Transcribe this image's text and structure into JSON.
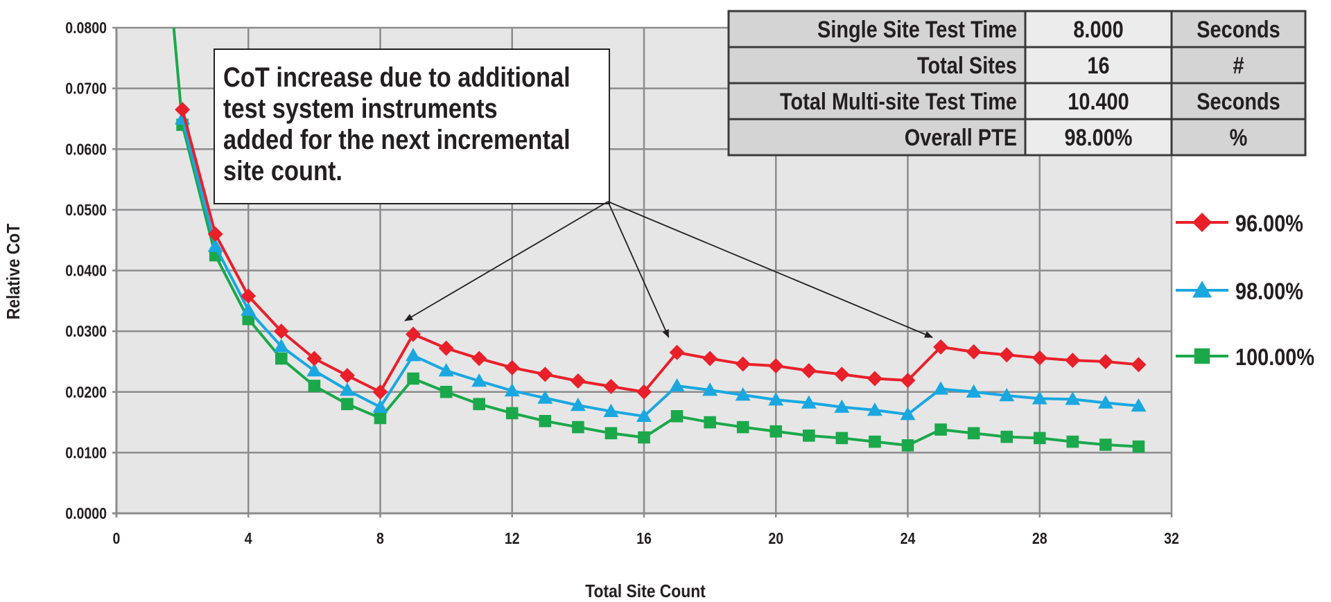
{
  "chart_data": {
    "type": "line",
    "title": "",
    "xlabel": "Total Site Count",
    "ylabel": "Relative CoT",
    "xlim": [
      0,
      32
    ],
    "ylim": [
      0,
      0.08
    ],
    "x_ticks": [
      "0",
      "4",
      "8",
      "12",
      "16",
      "20",
      "24",
      "28",
      "32"
    ],
    "y_ticks": [
      "0.0000",
      "0.0100",
      "0.0200",
      "0.0300",
      "0.0400",
      "0.0500",
      "0.0600",
      "0.0700",
      "0.0800"
    ],
    "grid": true,
    "legend_position": "right",
    "series": [
      {
        "name": "96.00%",
        "color": "#e8202a",
        "marker": "diamond",
        "x": [
          2,
          3,
          4,
          5,
          6,
          7,
          8,
          9,
          10,
          11,
          12,
          13,
          14,
          15,
          16,
          17,
          18,
          19,
          20,
          21,
          22,
          23,
          24,
          25,
          26,
          27,
          28,
          29,
          30,
          31
        ],
        "values": [
          0.0665,
          0.046,
          0.0358,
          0.03,
          0.0255,
          0.0227,
          0.02,
          0.0295,
          0.0272,
          0.0255,
          0.024,
          0.0229,
          0.0218,
          0.0209,
          0.02,
          0.0265,
          0.0255,
          0.0246,
          0.0243,
          0.0235,
          0.0229,
          0.0222,
          0.0219,
          0.0274,
          0.0266,
          0.0261,
          0.0256,
          0.0252,
          0.025,
          0.0245
        ]
      },
      {
        "name": "98.00%",
        "color": "#1aa7e0",
        "marker": "triangle",
        "x": [
          2,
          3,
          4,
          5,
          6,
          7,
          8,
          9,
          10,
          11,
          12,
          13,
          14,
          15,
          16,
          17,
          18,
          19,
          20,
          21,
          22,
          23,
          24,
          25,
          26,
          27,
          28,
          29,
          30,
          31
        ],
        "values": [
          0.065,
          0.044,
          0.0335,
          0.0275,
          0.0235,
          0.0203,
          0.0175,
          0.026,
          0.0235,
          0.0218,
          0.0202,
          0.019,
          0.0178,
          0.0168,
          0.016,
          0.021,
          0.0203,
          0.0195,
          0.0187,
          0.0182,
          0.0175,
          0.017,
          0.0163,
          0.0205,
          0.02,
          0.0194,
          0.0189,
          0.0188,
          0.0182,
          0.0177
        ]
      },
      {
        "name": "100.00%",
        "color": "#1ba84a",
        "marker": "square",
        "x": [
          1,
          2,
          3,
          4,
          5,
          6,
          7,
          8,
          9,
          10,
          11,
          12,
          13,
          14,
          15,
          16,
          17,
          18,
          19,
          20,
          21,
          22,
          23,
          24,
          25,
          26,
          27,
          28,
          29,
          30,
          31
        ],
        "values": [
          0.125,
          0.064,
          0.0425,
          0.032,
          0.0255,
          0.021,
          0.018,
          0.0157,
          0.0222,
          0.02,
          0.018,
          0.0165,
          0.0152,
          0.0142,
          0.0132,
          0.0125,
          0.016,
          0.015,
          0.0142,
          0.0135,
          0.0128,
          0.0124,
          0.0118,
          0.0112,
          0.0138,
          0.0132,
          0.0126,
          0.0124,
          0.0118,
          0.0113,
          0.011
        ]
      }
    ],
    "annotation": {
      "lines": [
        "CoT increase due to additional",
        "test system instruments",
        "added for the next incremental",
        "site count."
      ],
      "arrow_targets_x": [
        9,
        17,
        25
      ]
    }
  },
  "info_table": {
    "rows": [
      {
        "label": "Single Site Test Time",
        "value": "8.000",
        "unit": "Seconds"
      },
      {
        "label": "Total Sites",
        "value": "16",
        "unit": "#"
      },
      {
        "label": "Total Multi-site Test Time",
        "value": "10.400",
        "unit": "Seconds"
      },
      {
        "label": "Overall PTE",
        "value": "98.00%",
        "unit": "%"
      }
    ]
  }
}
